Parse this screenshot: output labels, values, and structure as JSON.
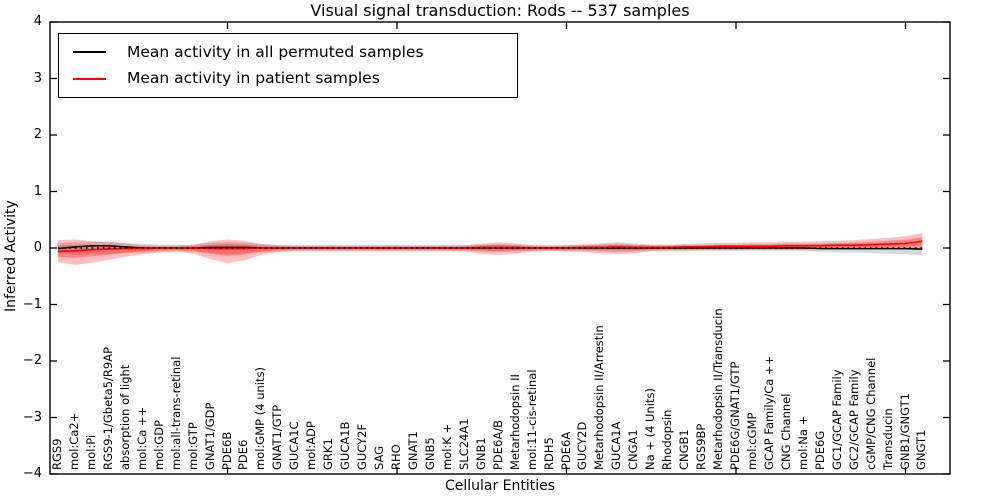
{
  "title": "Visual signal transduction: Rods -- 537 samples",
  "legend": {
    "items": [
      {
        "label": "Mean activity in all permuted samples",
        "color": "#000000"
      },
      {
        "label": "Mean activity in patient samples",
        "color": "#ff0000"
      }
    ]
  },
  "axes": {
    "ylabel": "Inferred Activity",
    "xlabel": "Cellular Entities",
    "ytick_labels": [
      "4",
      "3",
      "2",
      "1",
      "0",
      "−1",
      "−2",
      "−3",
      "−4"
    ]
  },
  "chart_data": {
    "type": "line",
    "title": "Visual signal transduction: Rods -- 537 samples",
    "xlabel": "Cellular Entities",
    "ylabel": "Inferred Activity",
    "ylim": [
      -4,
      4
    ],
    "yticks": [
      4,
      3,
      2,
      1,
      0,
      -1,
      -2,
      -3,
      -4
    ],
    "x_major_tick_indices": [
      10,
      20,
      30,
      40,
      50
    ],
    "zero_line": true,
    "grid": false,
    "legend_position": "upper left",
    "categories": [
      "RGS9",
      "mol:Ca2+",
      "mol:Pi",
      "RGS9-1/Gbeta5/R9AP",
      "absorption of light",
      "mol:Ca ++",
      "mol:GDP",
      "mol:all-trans-retinal",
      "mol:GTP",
      "GNAT1/GDP",
      "PDE6B",
      "PDE6",
      "mol:GMP (4 units)",
      "GNAT1/GTP",
      "GUCA1C",
      "mol:ADP",
      "GRK1",
      "GUCA1B",
      "GUCY2F",
      "SAG",
      "RHO",
      "GNAT1",
      "GNB5",
      "mol:K +",
      "SLC24A1",
      "GNB1",
      "PDE6A/B",
      "Metarhodopsin II",
      "mol:11-cis-retinal",
      "RDH5",
      "PDE6A",
      "GUCY2D",
      "Metarhodopsin II/Arrestin",
      "GUCA1A",
      "CNGA1",
      "Na + (4 Units)",
      "Rhodopsin",
      "CNGB1",
      "RGS9BP",
      "Metarhodopsin II/Transducin",
      "PDE6G/GNAT1/GTP",
      "mol:cGMP",
      "GCAP Family/Ca ++",
      "CNG Channel",
      "mol:Na +",
      "PDE6G",
      "GC1/GCAP Family",
      "GC2/GCAP Family",
      "cGMP/CNG Channel",
      "Transducin",
      "GNB1/GNGT1",
      "GNGT1"
    ],
    "series": [
      {
        "name": "Mean activity in all permuted samples",
        "color": "#000000",
        "line_width": 1.5,
        "values": [
          -0.01,
          0.02,
          0.04,
          0.04,
          0.02,
          0.0,
          0.0,
          0.0,
          0.0,
          0.01,
          0.01,
          0.01,
          0.0,
          0.0,
          0.0,
          0.0,
          0.0,
          0.0,
          0.0,
          0.0,
          0.0,
          0.0,
          0.0,
          0.0,
          0.0,
          0.0,
          0.0,
          0.0,
          0.0,
          0.0,
          0.0,
          0.0,
          0.0,
          0.0,
          0.0,
          0.0,
          0.0,
          0.0,
          0.0,
          0.0,
          0.0,
          0.0,
          0.0,
          0.0,
          0.0,
          -0.01,
          -0.01,
          -0.01,
          -0.01,
          -0.01,
          -0.01,
          -0.02
        ],
        "band_upper": [
          0.08,
          0.1,
          0.11,
          0.11,
          0.09,
          0.07,
          0.06,
          0.06,
          0.06,
          0.09,
          0.1,
          0.09,
          0.07,
          0.06,
          0.05,
          0.05,
          0.05,
          0.05,
          0.05,
          0.05,
          0.05,
          0.05,
          0.05,
          0.05,
          0.05,
          0.06,
          0.07,
          0.06,
          0.05,
          0.05,
          0.05,
          0.06,
          0.06,
          0.07,
          0.06,
          0.05,
          0.05,
          0.05,
          0.05,
          0.05,
          0.05,
          0.05,
          0.05,
          0.05,
          0.05,
          0.06,
          0.06,
          0.06,
          0.06,
          0.06,
          0.06,
          0.06
        ],
        "band_lower": [
          -0.1,
          -0.12,
          -0.11,
          -0.1,
          -0.09,
          -0.07,
          -0.06,
          -0.06,
          -0.06,
          -0.09,
          -0.11,
          -0.09,
          -0.07,
          -0.06,
          -0.05,
          -0.05,
          -0.05,
          -0.05,
          -0.05,
          -0.05,
          -0.05,
          -0.05,
          -0.05,
          -0.05,
          -0.05,
          -0.06,
          -0.07,
          -0.06,
          -0.05,
          -0.05,
          -0.05,
          -0.05,
          -0.06,
          -0.07,
          -0.06,
          -0.05,
          -0.05,
          -0.05,
          -0.05,
          -0.05,
          -0.05,
          -0.05,
          -0.05,
          -0.05,
          -0.06,
          -0.07,
          -0.08,
          -0.08,
          -0.09,
          -0.1,
          -0.11,
          -0.13
        ],
        "band_color": "#000000",
        "band_opacity": 0.15
      },
      {
        "name": "Mean activity in patient samples",
        "color": "#ff0000",
        "line_width": 1.6,
        "values": [
          -0.06,
          -0.05,
          -0.03,
          -0.02,
          -0.01,
          -0.01,
          0.0,
          0.0,
          0.0,
          -0.01,
          -0.01,
          -0.01,
          0.0,
          0.0,
          0.0,
          0.0,
          0.0,
          0.0,
          0.0,
          0.0,
          0.0,
          0.0,
          0.0,
          0.0,
          0.0,
          0.01,
          0.01,
          0.01,
          0.0,
          0.0,
          0.0,
          0.01,
          0.01,
          0.02,
          0.01,
          0.01,
          0.01,
          0.02,
          0.02,
          0.03,
          0.03,
          0.03,
          0.03,
          0.04,
          0.04,
          0.04,
          0.05,
          0.05,
          0.06,
          0.07,
          0.08,
          0.12
        ],
        "band_upper": [
          0.14,
          0.15,
          0.12,
          0.11,
          0.08,
          0.05,
          0.04,
          0.04,
          0.06,
          0.12,
          0.15,
          0.13,
          0.07,
          0.05,
          0.04,
          0.04,
          0.04,
          0.04,
          0.04,
          0.04,
          0.04,
          0.04,
          0.04,
          0.04,
          0.05,
          0.08,
          0.1,
          0.08,
          0.05,
          0.04,
          0.05,
          0.06,
          0.08,
          0.1,
          0.08,
          0.06,
          0.06,
          0.07,
          0.08,
          0.09,
          0.09,
          0.1,
          0.1,
          0.11,
          0.11,
          0.12,
          0.13,
          0.14,
          0.16,
          0.18,
          0.21,
          0.26
        ],
        "band_lower": [
          -0.25,
          -0.3,
          -0.26,
          -0.21,
          -0.15,
          -0.11,
          -0.08,
          -0.06,
          -0.1,
          -0.2,
          -0.27,
          -0.22,
          -0.12,
          -0.07,
          -0.05,
          -0.05,
          -0.05,
          -0.05,
          -0.05,
          -0.05,
          -0.05,
          -0.05,
          -0.05,
          -0.05,
          -0.06,
          -0.1,
          -0.12,
          -0.1,
          -0.06,
          -0.05,
          -0.06,
          -0.07,
          -0.09,
          -0.11,
          -0.09,
          -0.06,
          -0.05,
          -0.05,
          -0.04,
          -0.04,
          -0.04,
          -0.03,
          -0.03,
          -0.03,
          -0.03,
          -0.02,
          -0.02,
          -0.02,
          -0.02,
          -0.02,
          -0.03,
          -0.03
        ],
        "band_color": "#ff0000",
        "band_opacity": 0.25,
        "band_inner_opacity": 0.3
      }
    ]
  }
}
